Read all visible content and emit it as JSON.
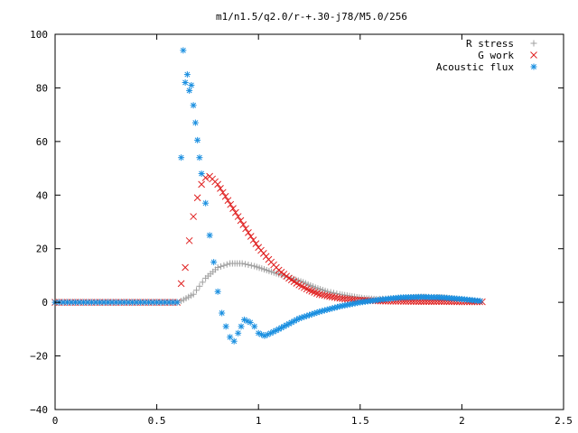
{
  "chart_data": {
    "type": "scatter",
    "title": "m1/n1.5/q2.0/r-+.30-j78/M5.0/256",
    "xlabel": "",
    "ylabel": "",
    "xlim": [
      0,
      2.5
    ],
    "ylim": [
      -40,
      100
    ],
    "xticks": [
      "0",
      "0.5",
      "1",
      "1.5",
      "2",
      "2.5"
    ],
    "yticks": [
      "−40",
      "−20",
      "0",
      "20",
      "40",
      "60",
      "80",
      "100"
    ],
    "grid": false,
    "legend_position": "top-right",
    "series": [
      {
        "name": "R stress",
        "marker": "plus",
        "color": "#a0a0a0",
        "x": [
          0.62,
          0.68,
          0.74,
          0.8,
          0.86,
          0.92,
          0.98,
          1.04,
          1.1,
          1.16,
          1.22,
          1.28,
          1.34,
          1.4,
          1.46,
          1.52,
          1.58,
          1.64,
          1.7,
          1.76,
          1.82,
          1.88,
          1.94,
          2.0,
          2.06
        ],
        "y": [
          0.5,
          3,
          9,
          13,
          14.5,
          14.5,
          13.5,
          12,
          10.5,
          9,
          7.5,
          5.5,
          4,
          3,
          2.2,
          1.5,
          1.2,
          1.4,
          1.7,
          1.9,
          2.0,
          1.9,
          1.6,
          1.1,
          0.5
        ]
      },
      {
        "name": "G work",
        "marker": "cross",
        "color": "#e02020",
        "x": [
          0.62,
          0.64,
          0.66,
          0.68,
          0.7,
          0.72,
          0.74,
          0.76,
          0.8,
          0.85,
          0.9,
          0.95,
          1.0,
          1.05,
          1.1,
          1.15,
          1.2,
          1.25,
          1.3,
          1.35,
          1.4,
          1.45,
          1.5,
          1.6,
          1.7,
          1.8,
          1.9,
          2.0,
          2.1
        ],
        "y": [
          7,
          13,
          23,
          32,
          39,
          44,
          46.5,
          47,
          44,
          38,
          32,
          26,
          20.5,
          16,
          12,
          9,
          6.5,
          4.5,
          3,
          2.2,
          1.5,
          1.1,
          0.8,
          0.5,
          0.4,
          0.3,
          0.3,
          0.2,
          0.2
        ]
      },
      {
        "name": "Acoustic flux",
        "marker": "star",
        "color": "#1a8fe0",
        "x": [
          0.62,
          0.63,
          0.64,
          0.65,
          0.66,
          0.67,
          0.68,
          0.69,
          0.7,
          0.71,
          0.72,
          0.74,
          0.76,
          0.78,
          0.8,
          0.82,
          0.84,
          0.86,
          0.88,
          0.9,
          0.93,
          0.96,
          0.98,
          1.0,
          1.03,
          1.06,
          1.1,
          1.15,
          1.2,
          1.3,
          1.4,
          1.5,
          1.6,
          1.7,
          1.8,
          1.9,
          2.0,
          2.09
        ],
        "y": [
          54,
          94,
          82,
          85,
          79,
          81,
          73.5,
          67,
          60.5,
          54,
          48,
          37,
          25,
          15,
          4,
          -4,
          -9,
          -13,
          -14.5,
          -11.5,
          -6.5,
          -7.5,
          -9,
          -11.5,
          -12.5,
          -11.5,
          -10,
          -8,
          -6,
          -3.5,
          -1.5,
          0,
          1,
          1.8,
          2,
          1.8,
          1.2,
          0.5
        ]
      }
    ]
  }
}
